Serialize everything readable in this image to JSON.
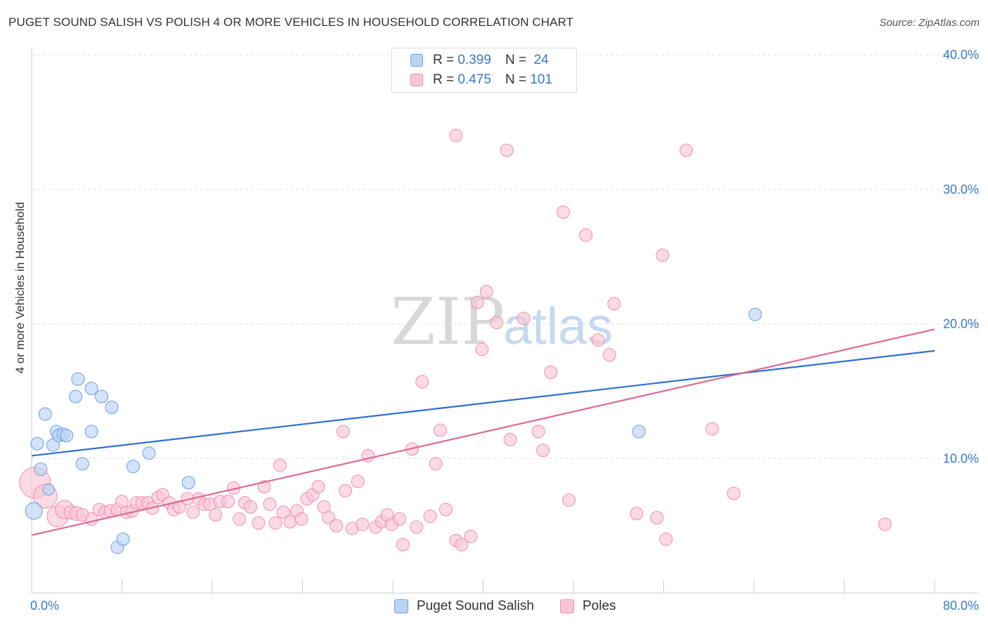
{
  "header": {
    "title": "PUGET SOUND SALISH VS POLISH 4 OR MORE VEHICLES IN HOUSEHOLD CORRELATION CHART",
    "source": "Source: ZipAtlas.com"
  },
  "watermark": {
    "zip": "ZIP",
    "atlas": "atlas"
  },
  "legend": {
    "r_label": "R =",
    "n_label": "N =",
    "rows": [
      {
        "r": "0.399",
        "n": "24",
        "color": "#6d9ee0"
      },
      {
        "r": "0.475",
        "n": "101",
        "color": "#ec8fae"
      }
    ]
  },
  "bottom_legend": [
    {
      "label": "Puget Sound Salish",
      "color": "#bcd4f4"
    },
    {
      "label": "Poles",
      "color": "#f9c6d6"
    }
  ],
  "chart_data": {
    "type": "scatter",
    "title": "PUGET SOUND SALISH VS POLISH 4 OR MORE VEHICLES IN HOUSEHOLD CORRELATION CHART",
    "xlabel": "",
    "ylabel": "4 or more Vehicles in Household",
    "xlim": [
      0,
      80
    ],
    "ylim": [
      0,
      40
    ],
    "x_tick_labels": [
      "0.0%",
      "80.0%"
    ],
    "y_tick_values": [
      10,
      20,
      30,
      40
    ],
    "y_tick_labels": [
      "10.0%",
      "20.0%",
      "30.0%",
      "40.0%"
    ],
    "grid": true,
    "legend_position": "top-center",
    "series": [
      {
        "name": "Puget Sound Salish",
        "color": "#6d9ee0",
        "fill": "#bcd4f4",
        "trend": {
          "x": [
            0,
            80
          ],
          "y": [
            10.2,
            18.0
          ],
          "color": "#2f6fd0"
        },
        "points": [
          {
            "x": 0.2,
            "y": 6.1,
            "s": 12
          },
          {
            "x": 0.5,
            "y": 11.1,
            "s": 9
          },
          {
            "x": 0.8,
            "y": 9.2,
            "s": 9
          },
          {
            "x": 1.2,
            "y": 13.3,
            "s": 9
          },
          {
            "x": 1.5,
            "y": 7.7,
            "s": 8
          },
          {
            "x": 1.9,
            "y": 11.0,
            "s": 9
          },
          {
            "x": 2.2,
            "y": 12.0,
            "s": 9
          },
          {
            "x": 2.4,
            "y": 11.7,
            "s": 9
          },
          {
            "x": 2.8,
            "y": 11.8,
            "s": 9
          },
          {
            "x": 3.1,
            "y": 11.7,
            "s": 9
          },
          {
            "x": 3.9,
            "y": 14.6,
            "s": 9
          },
          {
            "x": 4.1,
            "y": 15.9,
            "s": 9
          },
          {
            "x": 4.5,
            "y": 9.6,
            "s": 9
          },
          {
            "x": 5.3,
            "y": 15.2,
            "s": 9
          },
          {
            "x": 5.3,
            "y": 12.0,
            "s": 9
          },
          {
            "x": 6.2,
            "y": 14.6,
            "s": 9
          },
          {
            "x": 7.1,
            "y": 13.8,
            "s": 9
          },
          {
            "x": 7.6,
            "y": 3.4,
            "s": 9
          },
          {
            "x": 8.1,
            "y": 4.0,
            "s": 9
          },
          {
            "x": 9.0,
            "y": 9.4,
            "s": 9
          },
          {
            "x": 10.4,
            "y": 10.4,
            "s": 9
          },
          {
            "x": 13.9,
            "y": 8.2,
            "s": 9
          },
          {
            "x": 53.8,
            "y": 12.0,
            "s": 9
          },
          {
            "x": 64.1,
            "y": 20.7,
            "s": 9
          }
        ]
      },
      {
        "name": "Poles",
        "color": "#ec8fae",
        "fill": "#f9c6d6",
        "trend": {
          "x": [
            0,
            80
          ],
          "y": [
            4.3,
            19.6
          ],
          "color": "#e0698f"
        },
        "points": [
          {
            "x": 0.3,
            "y": 8.2,
            "s": 22
          },
          {
            "x": 1.2,
            "y": 7.2,
            "s": 17
          },
          {
            "x": 2.3,
            "y": 5.7,
            "s": 15
          },
          {
            "x": 2.9,
            "y": 6.2,
            "s": 13
          },
          {
            "x": 3.5,
            "y": 6.0,
            "s": 10
          },
          {
            "x": 4.0,
            "y": 5.9,
            "s": 10
          },
          {
            "x": 4.5,
            "y": 5.8,
            "s": 9
          },
          {
            "x": 5.3,
            "y": 5.5,
            "s": 9
          },
          {
            "x": 6.0,
            "y": 6.2,
            "s": 9
          },
          {
            "x": 6.5,
            "y": 6.0,
            "s": 9
          },
          {
            "x": 7.0,
            "y": 6.1,
            "s": 9
          },
          {
            "x": 7.6,
            "y": 6.2,
            "s": 9
          },
          {
            "x": 8.0,
            "y": 6.8,
            "s": 9
          },
          {
            "x": 8.4,
            "y": 6.0,
            "s": 9
          },
          {
            "x": 8.9,
            "y": 6.1,
            "s": 9
          },
          {
            "x": 9.3,
            "y": 6.7,
            "s": 9
          },
          {
            "x": 9.8,
            "y": 6.7,
            "s": 9
          },
          {
            "x": 10.3,
            "y": 6.7,
            "s": 9
          },
          {
            "x": 10.7,
            "y": 6.3,
            "s": 9
          },
          {
            "x": 11.2,
            "y": 7.1,
            "s": 9
          },
          {
            "x": 11.6,
            "y": 7.3,
            "s": 9
          },
          {
            "x": 12.2,
            "y": 6.7,
            "s": 9
          },
          {
            "x": 12.6,
            "y": 6.2,
            "s": 9
          },
          {
            "x": 13.1,
            "y": 6.4,
            "s": 9
          },
          {
            "x": 13.8,
            "y": 7.0,
            "s": 9
          },
          {
            "x": 14.3,
            "y": 6.0,
            "s": 9
          },
          {
            "x": 14.8,
            "y": 7.0,
            "s": 9
          },
          {
            "x": 15.3,
            "y": 6.6,
            "s": 9
          },
          {
            "x": 15.8,
            "y": 6.6,
            "s": 9
          },
          {
            "x": 16.3,
            "y": 5.8,
            "s": 9
          },
          {
            "x": 16.7,
            "y": 6.8,
            "s": 9
          },
          {
            "x": 17.4,
            "y": 6.8,
            "s": 9
          },
          {
            "x": 17.9,
            "y": 7.8,
            "s": 9
          },
          {
            "x": 18.4,
            "y": 5.5,
            "s": 9
          },
          {
            "x": 18.9,
            "y": 6.7,
            "s": 9
          },
          {
            "x": 19.4,
            "y": 6.4,
            "s": 9
          },
          {
            "x": 20.1,
            "y": 5.2,
            "s": 9
          },
          {
            "x": 20.6,
            "y": 7.9,
            "s": 9
          },
          {
            "x": 21.1,
            "y": 6.6,
            "s": 9
          },
          {
            "x": 21.6,
            "y": 5.2,
            "s": 9
          },
          {
            "x": 22.0,
            "y": 9.5,
            "s": 9
          },
          {
            "x": 22.3,
            "y": 6.0,
            "s": 9
          },
          {
            "x": 22.9,
            "y": 5.3,
            "s": 9
          },
          {
            "x": 23.5,
            "y": 6.1,
            "s": 9
          },
          {
            "x": 23.9,
            "y": 5.5,
            "s": 9
          },
          {
            "x": 24.4,
            "y": 7.0,
            "s": 9
          },
          {
            "x": 24.9,
            "y": 7.3,
            "s": 9
          },
          {
            "x": 25.4,
            "y": 7.9,
            "s": 9
          },
          {
            "x": 25.9,
            "y": 6.4,
            "s": 9
          },
          {
            "x": 26.3,
            "y": 5.6,
            "s": 9
          },
          {
            "x": 27.0,
            "y": 5.0,
            "s": 9
          },
          {
            "x": 27.6,
            "y": 12.0,
            "s": 9
          },
          {
            "x": 27.8,
            "y": 7.6,
            "s": 9
          },
          {
            "x": 28.4,
            "y": 4.8,
            "s": 9
          },
          {
            "x": 28.9,
            "y": 8.3,
            "s": 9
          },
          {
            "x": 29.3,
            "y": 5.1,
            "s": 9
          },
          {
            "x": 29.8,
            "y": 10.2,
            "s": 9
          },
          {
            "x": 30.5,
            "y": 4.9,
            "s": 9
          },
          {
            "x": 31.0,
            "y": 5.3,
            "s": 9
          },
          {
            "x": 31.5,
            "y": 5.8,
            "s": 9
          },
          {
            "x": 31.9,
            "y": 5.1,
            "s": 9
          },
          {
            "x": 32.6,
            "y": 5.5,
            "s": 9
          },
          {
            "x": 32.9,
            "y": 3.6,
            "s": 9
          },
          {
            "x": 33.7,
            "y": 10.7,
            "s": 9
          },
          {
            "x": 34.1,
            "y": 4.9,
            "s": 9
          },
          {
            "x": 34.6,
            "y": 15.7,
            "s": 9
          },
          {
            "x": 35.3,
            "y": 5.7,
            "s": 9
          },
          {
            "x": 35.8,
            "y": 9.6,
            "s": 9
          },
          {
            "x": 36.2,
            "y": 12.1,
            "s": 9
          },
          {
            "x": 36.7,
            "y": 6.2,
            "s": 9
          },
          {
            "x": 37.6,
            "y": 3.9,
            "s": 9
          },
          {
            "x": 37.6,
            "y": 34.0,
            "s": 9
          },
          {
            "x": 38.1,
            "y": 3.6,
            "s": 9
          },
          {
            "x": 38.9,
            "y": 4.2,
            "s": 9
          },
          {
            "x": 39.5,
            "y": 21.6,
            "s": 9
          },
          {
            "x": 39.9,
            "y": 18.1,
            "s": 9
          },
          {
            "x": 40.3,
            "y": 22.4,
            "s": 9
          },
          {
            "x": 41.2,
            "y": 20.1,
            "s": 9
          },
          {
            "x": 42.1,
            "y": 32.9,
            "s": 9
          },
          {
            "x": 42.4,
            "y": 11.4,
            "s": 9
          },
          {
            "x": 43.6,
            "y": 20.4,
            "s": 9
          },
          {
            "x": 44.9,
            "y": 12.0,
            "s": 9
          },
          {
            "x": 45.3,
            "y": 10.6,
            "s": 9
          },
          {
            "x": 46.0,
            "y": 16.4,
            "s": 9
          },
          {
            "x": 47.1,
            "y": 28.3,
            "s": 9
          },
          {
            "x": 47.6,
            "y": 6.9,
            "s": 9
          },
          {
            "x": 49.1,
            "y": 26.6,
            "s": 9
          },
          {
            "x": 50.2,
            "y": 18.8,
            "s": 9
          },
          {
            "x": 51.2,
            "y": 17.7,
            "s": 9
          },
          {
            "x": 51.6,
            "y": 21.5,
            "s": 9
          },
          {
            "x": 53.6,
            "y": 5.9,
            "s": 9
          },
          {
            "x": 55.4,
            "y": 5.6,
            "s": 9
          },
          {
            "x": 55.9,
            "y": 25.1,
            "s": 9
          },
          {
            "x": 56.2,
            "y": 4.0,
            "s": 9
          },
          {
            "x": 58.0,
            "y": 32.9,
            "s": 9
          },
          {
            "x": 60.3,
            "y": 12.2,
            "s": 9
          },
          {
            "x": 62.2,
            "y": 7.4,
            "s": 9
          },
          {
            "x": 75.6,
            "y": 5.1,
            "s": 9
          }
        ]
      }
    ]
  }
}
